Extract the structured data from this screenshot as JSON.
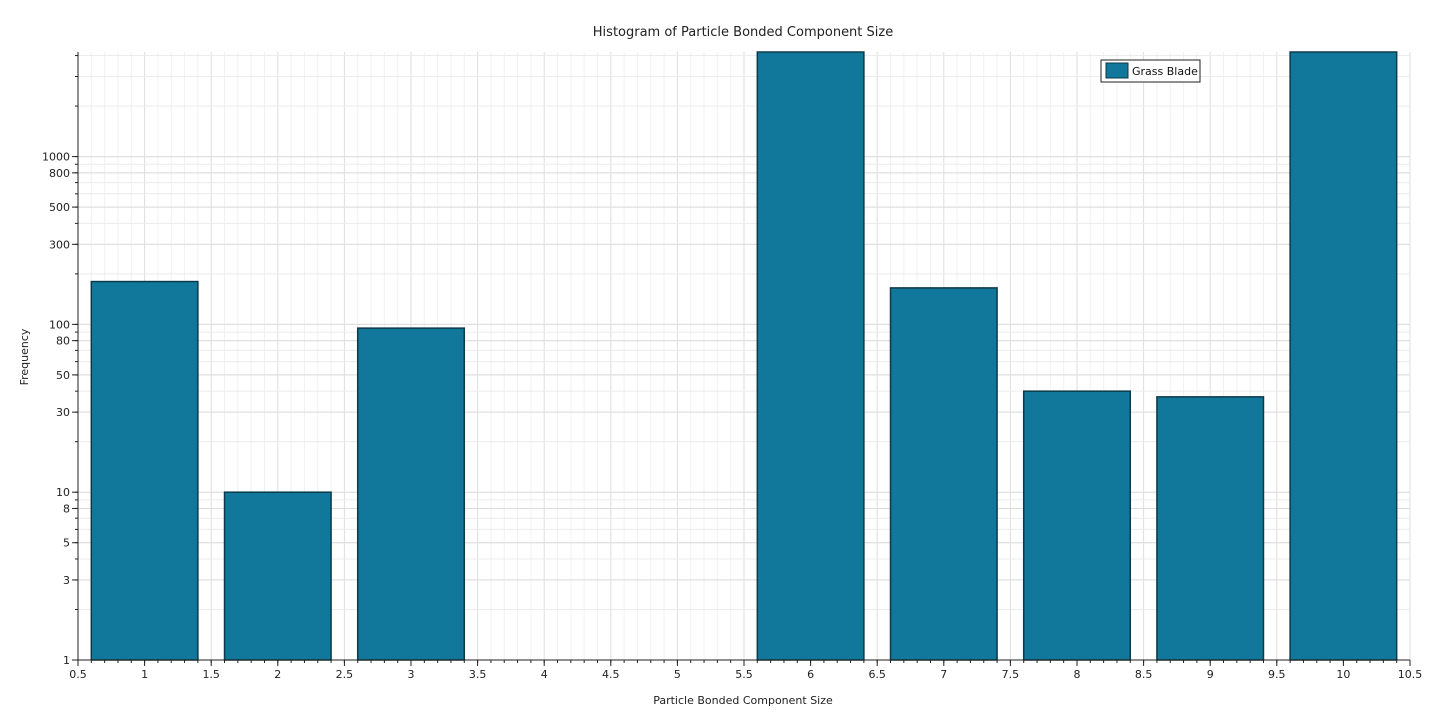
{
  "chart_data": {
    "type": "bar",
    "title": "Histogram of Particle Bonded Component Size",
    "xlabel": "Particle Bonded Component Size",
    "ylabel": "Frequency",
    "xlim": [
      0.5,
      10.5
    ],
    "ylim": [
      1,
      4200
    ],
    "yscale": "log",
    "grid": true,
    "legend_position": "top-right",
    "bar_color": "#12789b",
    "bar_edge_color": "#0b3a48",
    "x_ticks": [
      "0.5",
      "1",
      "1.5",
      "2",
      "2.5",
      "3",
      "3.5",
      "4",
      "4.5",
      "5",
      "5.5",
      "6",
      "6.5",
      "7",
      "7.5",
      "8",
      "8.5",
      "9",
      "9.5",
      "10",
      "10.5"
    ],
    "y_ticks": [
      "1",
      "3",
      "5",
      "8",
      "10",
      "30",
      "50",
      "80",
      "100",
      "300",
      "500",
      "800",
      "1000"
    ],
    "series": [
      {
        "name": "Grass Blade",
        "x": [
          1,
          2,
          3,
          6,
          7,
          8,
          9,
          10
        ],
        "values": [
          180,
          10,
          95,
          4200,
          165,
          40,
          37,
          4200
        ]
      }
    ]
  }
}
